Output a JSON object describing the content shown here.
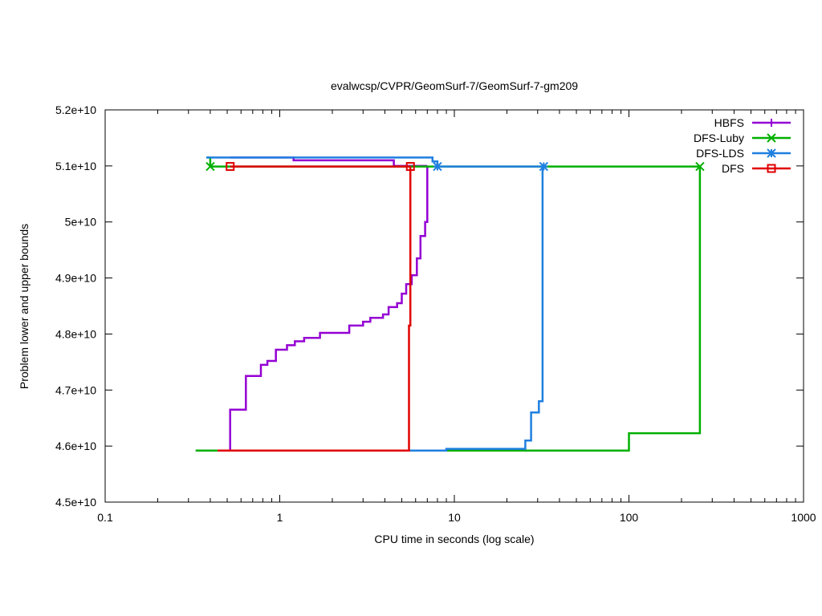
{
  "chart_data": {
    "type": "line",
    "title": "evalwcsp/CVPR/GeomSurf-7/GeomSurf-7-gm209",
    "xlabel": "CPU time in seconds (log scale)",
    "ylabel": "Problem lower and upper bounds",
    "xscale": "log",
    "xlim": [
      0.1,
      1000
    ],
    "ylim": [
      45000000000,
      52000000000
    ],
    "x_ticks": [
      0.1,
      1,
      10,
      100,
      1000
    ],
    "x_tick_labels": [
      "0.1",
      "1",
      "10",
      "100",
      "1000"
    ],
    "y_ticks": [
      45000000000,
      46000000000,
      47000000000,
      48000000000,
      49000000000,
      50000000000,
      51000000000,
      52000000000
    ],
    "y_tick_labels": [
      "4.5e+10",
      "4.6e+10",
      "4.7e+10",
      "4.8e+10",
      "4.9e+10",
      "5e+10",
      "5.1e+10",
      "5.2e+10"
    ],
    "legend_position": "top-right",
    "series": [
      {
        "name": "HBFS",
        "color": "#9400d3",
        "marker": "plus",
        "upper": [
          [
            0.52,
            51150000000
          ],
          [
            1.2,
            51150000000
          ],
          [
            1.2,
            51100000000
          ],
          [
            4.5,
            51100000000
          ],
          [
            4.5,
            51000000000
          ],
          [
            7.0,
            51000000000
          ]
        ],
        "lower": [
          [
            0.33,
            45920000000
          ],
          [
            0.52,
            45920000000
          ],
          [
            0.52,
            46650000000
          ],
          [
            0.64,
            46650000000
          ],
          [
            0.64,
            47250000000
          ],
          [
            0.78,
            47250000000
          ],
          [
            0.78,
            47450000000
          ],
          [
            0.85,
            47450000000
          ],
          [
            0.85,
            47520000000
          ],
          [
            0.95,
            47520000000
          ],
          [
            0.95,
            47720000000
          ],
          [
            1.1,
            47720000000
          ],
          [
            1.1,
            47800000000
          ],
          [
            1.22,
            47800000000
          ],
          [
            1.22,
            47870000000
          ],
          [
            1.38,
            47870000000
          ],
          [
            1.38,
            47930000000
          ],
          [
            1.7,
            47930000000
          ],
          [
            1.7,
            48020000000
          ],
          [
            2.5,
            48020000000
          ],
          [
            2.5,
            48150000000
          ],
          [
            3.0,
            48150000000
          ],
          [
            3.0,
            48220000000
          ],
          [
            3.3,
            48220000000
          ],
          [
            3.3,
            48290000000
          ],
          [
            3.9,
            48290000000
          ],
          [
            3.9,
            48350000000
          ],
          [
            4.2,
            48350000000
          ],
          [
            4.2,
            48480000000
          ],
          [
            4.7,
            48480000000
          ],
          [
            4.7,
            48550000000
          ],
          [
            5.0,
            48550000000
          ],
          [
            5.0,
            48720000000
          ],
          [
            5.3,
            48720000000
          ],
          [
            5.3,
            48890000000
          ],
          [
            5.7,
            48890000000
          ],
          [
            5.7,
            49050000000
          ],
          [
            6.1,
            49050000000
          ],
          [
            6.1,
            49350000000
          ],
          [
            6.4,
            49350000000
          ],
          [
            6.4,
            49750000000
          ],
          [
            6.8,
            49750000000
          ],
          [
            6.8,
            50000000000
          ],
          [
            7.0,
            50000000000
          ],
          [
            7.0,
            51000000000
          ]
        ]
      },
      {
        "name": "DFS-Luby",
        "color": "#00b000",
        "marker": "x",
        "upper": [
          [
            0.38,
            51150000000
          ],
          [
            0.4,
            51150000000
          ],
          [
            0.4,
            50990000000
          ],
          [
            255,
            50990000000
          ]
        ],
        "lower": [
          [
            0.33,
            45920000000
          ],
          [
            100,
            45920000000
          ],
          [
            100,
            46230000000
          ],
          [
            255,
            46230000000
          ],
          [
            255,
            50990000000
          ]
        ],
        "markers": [
          [
            0.4,
            50990000000
          ],
          [
            255,
            50990000000
          ]
        ]
      },
      {
        "name": "DFS-LDS",
        "color": "#1f7fe0",
        "marker": "star",
        "upper": [
          [
            0.38,
            51150000000
          ],
          [
            7.5,
            51150000000
          ],
          [
            7.5,
            51080000000
          ],
          [
            8.0,
            51080000000
          ],
          [
            8.0,
            50990000000
          ],
          [
            32.5,
            50990000000
          ]
        ],
        "lower": [
          [
            5.5,
            45920000000
          ],
          [
            9.0,
            45920000000
          ],
          [
            9.0,
            45950000000
          ],
          [
            25.5,
            45950000000
          ],
          [
            25.5,
            46100000000
          ],
          [
            27.5,
            46100000000
          ],
          [
            27.5,
            46600000000
          ],
          [
            30.5,
            46600000000
          ],
          [
            30.5,
            46800000000
          ],
          [
            32.0,
            46800000000
          ],
          [
            32.0,
            50990000000
          ],
          [
            32.5,
            50990000000
          ]
        ],
        "markers": [
          [
            8.0,
            50990000000
          ],
          [
            32.5,
            50990000000
          ]
        ]
      },
      {
        "name": "DFS",
        "color": "#e00000",
        "marker": "square",
        "upper": [
          [
            0.52,
            50990000000
          ],
          [
            5.6,
            50990000000
          ]
        ],
        "lower": [
          [
            0.44,
            45920000000
          ],
          [
            5.5,
            45920000000
          ],
          [
            5.5,
            48150000000
          ],
          [
            5.6,
            48150000000
          ],
          [
            5.6,
            50990000000
          ]
        ],
        "markers": [
          [
            0.52,
            50990000000
          ],
          [
            5.6,
            50990000000
          ]
        ]
      }
    ]
  }
}
